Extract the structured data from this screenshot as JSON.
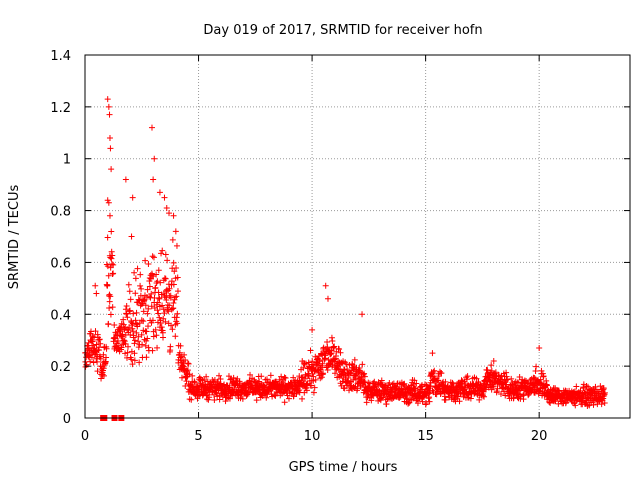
{
  "chart_data": {
    "type": "scatter",
    "title": "Day 019 of 2017, SRMTID for receiver hofn",
    "xlabel": "GPS time / hours",
    "ylabel": "SRMTID / TECUs",
    "xlim": [
      0,
      24
    ],
    "ylim": [
      0,
      1.4
    ],
    "xticks": [
      0,
      5,
      10,
      15,
      20
    ],
    "yticks": [
      0,
      0.2,
      0.4,
      0.6,
      0.8,
      1,
      1.2,
      1.4
    ],
    "ytick_labels": [
      "0",
      "0.2",
      "0.4",
      "0.6",
      "0.8",
      "1",
      "1.2",
      "1.4"
    ],
    "grid": true,
    "marker": "+",
    "color": "#ff0000",
    "zero_markers": {
      "marker": "square",
      "x": [
        0.8,
        0.85,
        1.3,
        1.6
      ]
    },
    "series": [
      {
        "name": "SRMTID",
        "segments": [
          {
            "x": [
              0.0,
              0.3
            ],
            "mid": [
              0.21,
              0.3
            ],
            "spread": 0.08
          },
          {
            "x": [
              0.3,
              0.7
            ],
            "mid": [
              0.3,
              0.22
            ],
            "spread": 0.12
          },
          {
            "x": [
              0.7,
              0.95
            ],
            "mid": [
              0.15,
              0.25
            ],
            "spread": 0.08
          },
          {
            "x": [
              0.95,
              1.25
            ],
            "mid": [
              0.45,
              0.55
            ],
            "spread": 0.35
          },
          {
            "x": [
              1.25,
              1.8
            ],
            "mid": [
              0.28,
              0.3
            ],
            "spread": 0.1
          },
          {
            "x": [
              1.8,
              2.6
            ],
            "mid": [
              0.35,
              0.38
            ],
            "spread": 0.25
          },
          {
            "x": [
              2.6,
              3.3
            ],
            "mid": [
              0.38,
              0.45
            ],
            "spread": 0.28
          },
          {
            "x": [
              3.3,
              4.1
            ],
            "mid": [
              0.45,
              0.4
            ],
            "spread": 0.3
          },
          {
            "x": [
              4.1,
              4.6
            ],
            "mid": [
              0.22,
              0.15
            ],
            "spread": 0.08
          },
          {
            "x": [
              4.6,
              9.5
            ],
            "mid": [
              0.11,
              0.11
            ],
            "spread": 0.06
          },
          {
            "x": [
              9.5,
              10.5
            ],
            "mid": [
              0.13,
              0.2
            ],
            "spread": 0.1
          },
          {
            "x": [
              10.5,
              11.2
            ],
            "mid": [
              0.24,
              0.22
            ],
            "spread": 0.1
          },
          {
            "x": [
              11.2,
              12.3
            ],
            "mid": [
              0.17,
              0.14
            ],
            "spread": 0.09
          },
          {
            "x": [
              12.3,
              15.2
            ],
            "mid": [
              0.1,
              0.09
            ],
            "spread": 0.06
          },
          {
            "x": [
              15.2,
              15.8
            ],
            "mid": [
              0.14,
              0.12
            ],
            "spread": 0.08
          },
          {
            "x": [
              15.8,
              17.6
            ],
            "mid": [
              0.1,
              0.11
            ],
            "spread": 0.06
          },
          {
            "x": [
              17.6,
              18.6
            ],
            "mid": [
              0.15,
              0.12
            ],
            "spread": 0.07
          },
          {
            "x": [
              18.6,
              19.8
            ],
            "mid": [
              0.1,
              0.12
            ],
            "spread": 0.06
          },
          {
            "x": [
              19.8,
              20.4
            ],
            "mid": [
              0.14,
              0.1
            ],
            "spread": 0.08
          },
          {
            "x": [
              20.4,
              22.9
            ],
            "mid": [
              0.08,
              0.08
            ],
            "spread": 0.05
          }
        ],
        "outliers": [
          [
            1.0,
            1.23
          ],
          [
            1.05,
            1.2
          ],
          [
            1.08,
            1.17
          ],
          [
            1.1,
            1.08
          ],
          [
            1.12,
            1.04
          ],
          [
            1.0,
            0.84
          ],
          [
            1.05,
            0.83
          ],
          [
            1.15,
            0.96
          ],
          [
            1.1,
            0.78
          ],
          [
            1.8,
            0.92
          ],
          [
            2.1,
            0.85
          ],
          [
            2.05,
            0.7
          ],
          [
            2.95,
            1.12
          ],
          [
            3.05,
            1.0
          ],
          [
            3.0,
            0.92
          ],
          [
            3.3,
            0.87
          ],
          [
            3.5,
            0.85
          ],
          [
            3.6,
            0.81
          ],
          [
            3.7,
            0.79
          ],
          [
            4.0,
            0.72
          ],
          [
            3.9,
            0.78
          ],
          [
            0.45,
            0.51
          ],
          [
            0.5,
            0.48
          ],
          [
            10.6,
            0.51
          ],
          [
            12.2,
            0.4
          ],
          [
            10.0,
            0.34
          ],
          [
            10.7,
            0.46
          ],
          [
            15.3,
            0.25
          ],
          [
            20.0,
            0.27
          ],
          [
            18.0,
            0.22
          ]
        ]
      }
    ]
  }
}
